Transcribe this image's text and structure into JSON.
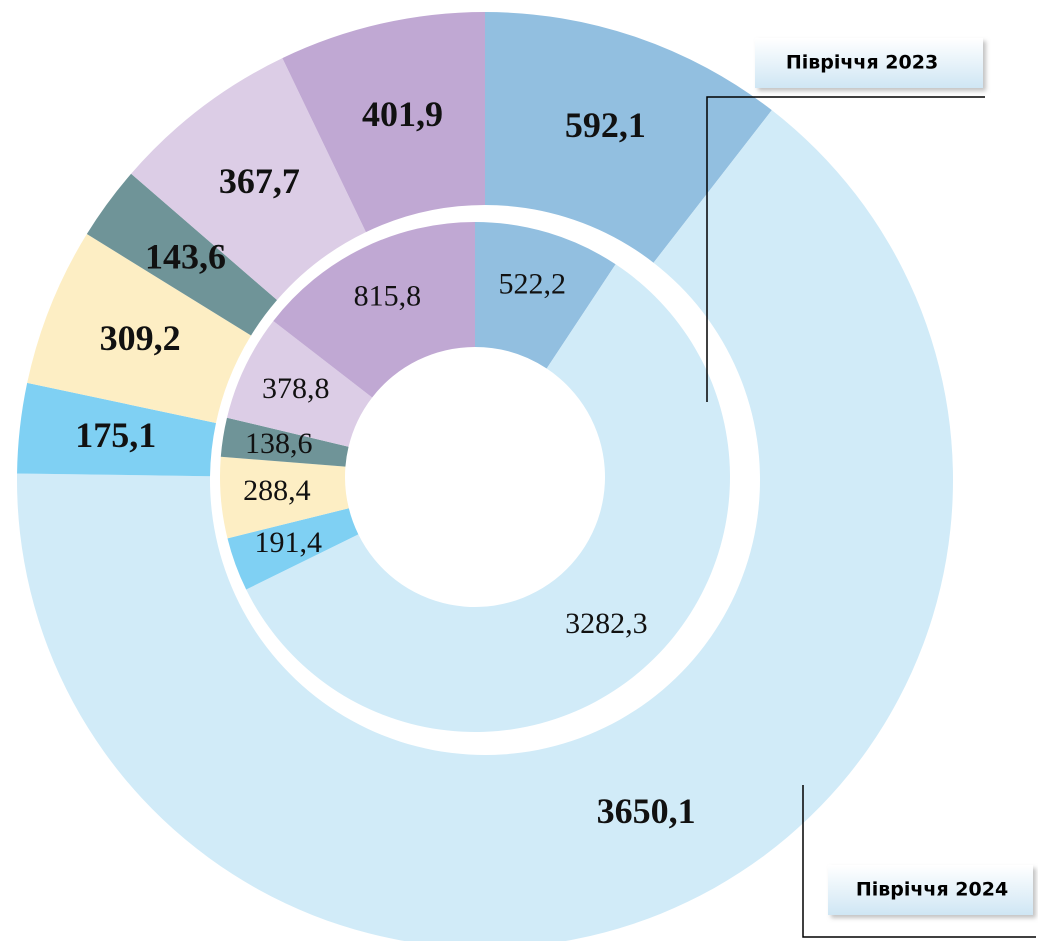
{
  "chart_data": {
    "type": "donut",
    "colors": [
      "#92bfe0",
      "#d1ebf8",
      "#7fd0f3",
      "#fdeec4",
      "#6f9498",
      "#dccde6",
      "#c0a8d3"
    ],
    "series": [
      {
        "name": "Півріччя 2023",
        "values": [
          522.2,
          3282.3,
          191.4,
          288.4,
          138.6,
          378.8,
          815.8
        ],
        "value_labels": [
          "522,2",
          "3282,3",
          "191,4",
          "288,4",
          "138,6",
          "378,8",
          "815,8"
        ]
      },
      {
        "name": "Півріччя 2024",
        "values": [
          592.1,
          3650.1,
          175.1,
          309.2,
          143.6,
          367.7,
          401.9
        ],
        "value_labels": [
          "592,1",
          "3650,1",
          "175,1",
          "309,2",
          "143,6",
          "367,7",
          "401,9"
        ]
      }
    ]
  }
}
